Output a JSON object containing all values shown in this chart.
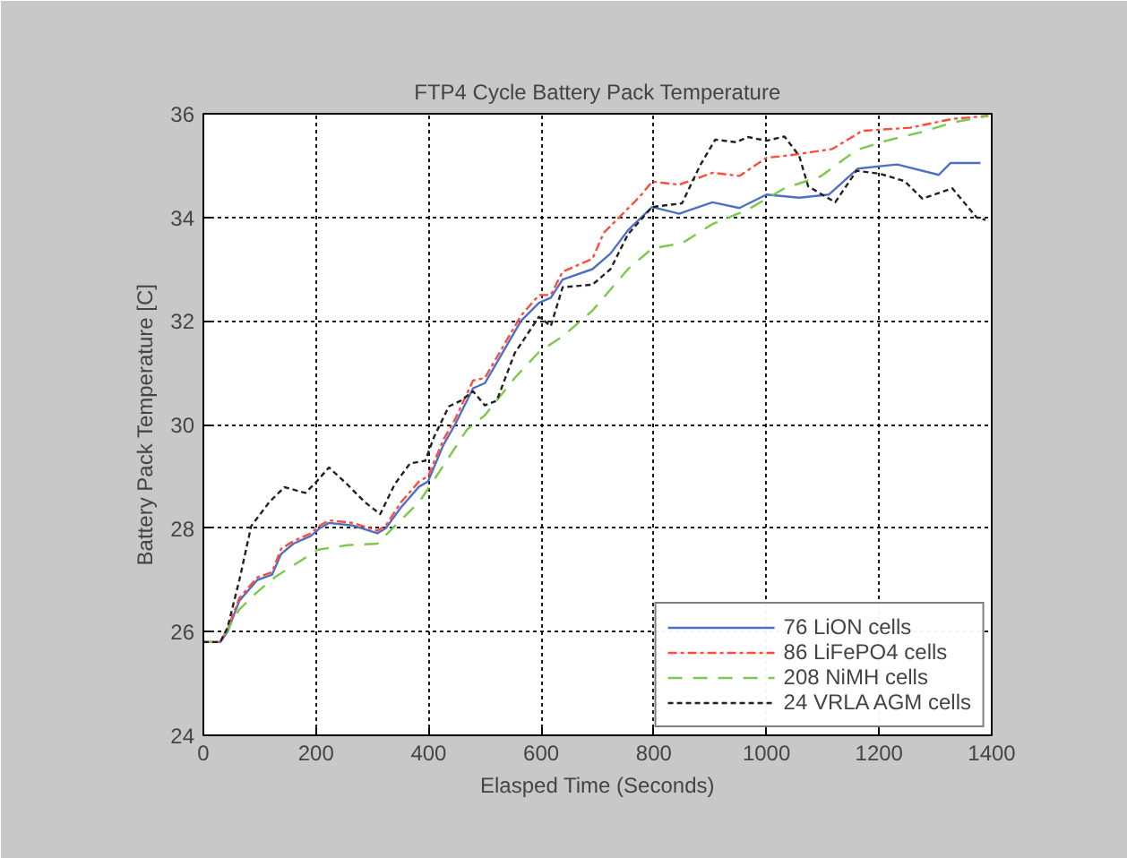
{
  "chart_data": {
    "type": "line",
    "title": "FTP4 Cycle Battery Pack Temperature",
    "xlabel": "Elasped Time (Seconds)",
    "ylabel": "Battery Pack Temperature [C]",
    "xlim": [
      0,
      1400
    ],
    "xticks": [
      0,
      200,
      400,
      600,
      800,
      1000,
      1200,
      1400
    ],
    "ylim": [
      24,
      36
    ],
    "yticks": [
      24,
      26,
      28,
      30,
      32,
      34,
      36
    ],
    "grid": true,
    "legend": "bottom right",
    "series": [
      {
        "name": "76 LiON cells",
        "color": "#4f6fc4",
        "line_style": "solid",
        "x": [
          0,
          30,
          43,
          64,
          96,
          122,
          138,
          160,
          191,
          207,
          223,
          266,
          309,
          324,
          351,
          383,
          399,
          426,
          447,
          479,
          500,
          532,
          564,
          596,
          617,
          638,
          691,
          723,
          754,
          797,
          845,
          904,
          952,
          1000,
          1058,
          1111,
          1162,
          1232,
          1306,
          1327,
          1380
        ],
        "values": [
          25.8,
          25.8,
          26.0,
          26.6,
          27.0,
          27.1,
          27.5,
          27.7,
          27.85,
          28.0,
          28.1,
          28.05,
          27.9,
          28.0,
          28.4,
          28.8,
          28.9,
          29.6,
          30.0,
          30.7,
          30.8,
          31.4,
          32.0,
          32.35,
          32.45,
          32.8,
          33.0,
          33.3,
          33.75,
          34.2,
          34.07,
          34.29,
          34.18,
          34.44,
          34.38,
          34.44,
          34.94,
          35.02,
          34.82,
          35.05,
          35.05
        ]
      },
      {
        "name": "86 LiFePO4 cells",
        "color": "#ff4b3a",
        "line_style": "dashdot",
        "x": [
          0,
          30,
          43,
          64,
          96,
          122,
          138,
          160,
          191,
          207,
          223,
          266,
          309,
          324,
          351,
          383,
          399,
          426,
          447,
          479,
          500,
          532,
          564,
          596,
          617,
          638,
          691,
          711,
          775,
          797,
          845,
          904,
          952,
          1000,
          1043,
          1117,
          1170,
          1255,
          1330,
          1394
        ],
        "values": [
          25.8,
          25.8,
          26.05,
          26.65,
          27.05,
          27.15,
          27.6,
          27.75,
          27.9,
          28.05,
          28.15,
          28.1,
          27.95,
          28.05,
          28.5,
          28.9,
          29.0,
          29.7,
          30.1,
          30.85,
          30.9,
          31.5,
          32.1,
          32.5,
          32.5,
          32.95,
          33.2,
          33.7,
          34.4,
          34.69,
          34.63,
          34.86,
          34.8,
          35.15,
          35.2,
          35.32,
          35.67,
          35.73,
          35.9,
          35.96
        ]
      },
      {
        "name": "208 NiMH cells",
        "color": "#7cc84c",
        "line_style": "dashed",
        "x": [
          0,
          30,
          64,
          96,
          128,
          170,
          202,
          255,
          309,
          340,
          383,
          426,
          468,
          500,
          553,
          596,
          638,
          691,
          754,
          797,
          850,
          904,
          967,
          1032,
          1096,
          1160,
          1213,
          1277,
          1330,
          1394
        ],
        "values": [
          25.8,
          25.8,
          26.43,
          26.77,
          27.06,
          27.35,
          27.58,
          27.67,
          27.7,
          28.04,
          28.5,
          29.2,
          29.9,
          30.18,
          30.9,
          31.4,
          31.7,
          32.2,
          33.0,
          33.4,
          33.5,
          33.87,
          34.15,
          34.56,
          34.79,
          35.3,
          35.48,
          35.65,
          35.83,
          35.96
        ]
      },
      {
        "name": "24 VRLA AGM cells",
        "color": "#222222",
        "line_style": "dotted",
        "x": [
          0,
          30,
          43,
          64,
          85,
          117,
          144,
          181,
          197,
          223,
          255,
          287,
          314,
          340,
          367,
          394,
          410,
          436,
          457,
          479,
          500,
          521,
          553,
          596,
          617,
          638,
          691,
          723,
          754,
          797,
          850,
          882,
          909,
          946,
          967,
          1000,
          1032,
          1058,
          1074,
          1122,
          1160,
          1202,
          1245,
          1277,
          1330,
          1373,
          1389
        ],
        "values": [
          25.8,
          25.8,
          26.08,
          27.0,
          28.04,
          28.5,
          28.79,
          28.68,
          28.85,
          29.17,
          28.85,
          28.5,
          28.27,
          28.85,
          29.25,
          29.3,
          29.77,
          30.35,
          30.46,
          30.64,
          30.37,
          30.46,
          31.38,
          32.08,
          31.9,
          32.65,
          32.7,
          33.0,
          33.67,
          34.2,
          34.27,
          35.0,
          35.5,
          35.45,
          35.55,
          35.48,
          35.56,
          35.19,
          34.6,
          34.29,
          34.9,
          34.84,
          34.7,
          34.36,
          34.56,
          34.0,
          33.95
        ]
      }
    ]
  }
}
